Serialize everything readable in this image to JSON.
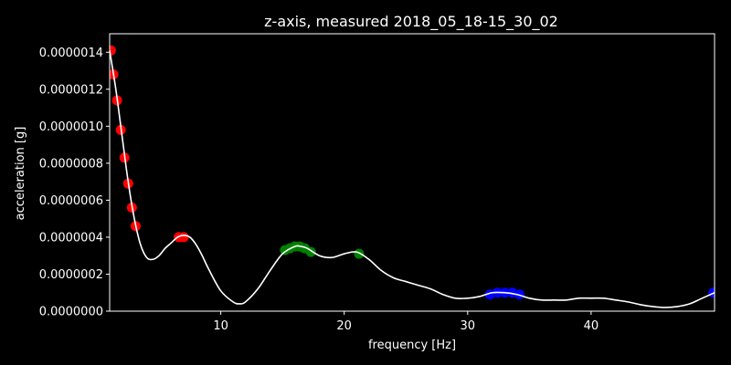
{
  "chart_data": {
    "type": "line",
    "title": "z-axis, measured 2018_05_18-15_30_02",
    "xlabel": "frequency [Hz]",
    "ylabel": "acceleration [g]",
    "xlim": [
      1,
      50
    ],
    "ylim": [
      0,
      1.5e-06
    ],
    "xticks": [
      10,
      20,
      30,
      40
    ],
    "xtick_labels": [
      "10",
      "20",
      "30",
      "40"
    ],
    "yticks": [
      0,
      2e-07,
      4e-07,
      6e-07,
      8e-07,
      1e-06,
      1.2e-06,
      1.4e-06
    ],
    "ytick_labels": [
      "0.0000000",
      "0.0000002",
      "0.0000004",
      "0.0000006",
      "0.0000008",
      "0.0000010",
      "0.0000012",
      "0.0000014"
    ],
    "grid": false,
    "colors": {
      "background": "#000000",
      "line": "#ffffff",
      "red": "#ff0000",
      "green": "#008000",
      "blue": "#0000ff"
    },
    "series": [
      {
        "color": "#ffffff",
        "x": [
          1,
          1.5,
          2,
          2.5,
          3,
          3.5,
          4,
          4.5,
          5,
          5.5,
          6,
          6.5,
          7,
          7.5,
          8,
          8.5,
          9,
          10,
          11,
          11.5,
          12,
          13,
          14,
          15,
          16,
          16.5,
          17,
          18,
          19,
          20,
          21,
          22,
          23,
          24,
          25,
          26,
          27,
          28,
          29,
          30,
          31,
          32,
          33,
          34,
          35,
          36,
          37,
          38,
          39,
          40,
          41,
          42,
          43,
          44,
          45,
          46,
          47,
          48,
          49,
          50
        ],
        "y": [
          1.41e-06,
          1.2e-06,
          9.5e-07,
          7e-07,
          5e-07,
          3.6e-07,
          2.9e-07,
          2.8e-07,
          3e-07,
          3.4e-07,
          3.7e-07,
          4e-07,
          4.1e-07,
          4e-07,
          3.6e-07,
          3e-07,
          2.3e-07,
          1.1e-07,
          5e-08,
          4e-08,
          5e-08,
          1.2e-07,
          2.2e-07,
          3.1e-07,
          3.5e-07,
          3.5e-07,
          3.4e-07,
          3e-07,
          2.9e-07,
          3.1e-07,
          3.2e-07,
          2.8e-07,
          2.2e-07,
          1.8e-07,
          1.6e-07,
          1.4e-07,
          1.2e-07,
          9e-08,
          7e-08,
          7e-08,
          8e-08,
          1e-07,
          1e-07,
          9e-08,
          7e-08,
          6e-08,
          6e-08,
          6e-08,
          7e-08,
          7e-08,
          7e-08,
          6e-08,
          5e-08,
          3.5e-08,
          2.5e-08,
          2e-08,
          2.5e-08,
          4e-08,
          7e-08,
          1e-07
        ]
      }
    ],
    "markers": [
      {
        "color": "#ff0000",
        "x": 1.1,
        "y": 1.41e-06
      },
      {
        "color": "#ff0000",
        "x": 1.3,
        "y": 1.28e-06
      },
      {
        "color": "#ff0000",
        "x": 1.6,
        "y": 1.14e-06
      },
      {
        "color": "#ff0000",
        "x": 1.9,
        "y": 9.8e-07
      },
      {
        "color": "#ff0000",
        "x": 2.2,
        "y": 8.3e-07
      },
      {
        "color": "#ff0000",
        "x": 2.5,
        "y": 6.9e-07
      },
      {
        "color": "#ff0000",
        "x": 2.8,
        "y": 5.6e-07
      },
      {
        "color": "#ff0000",
        "x": 3.1,
        "y": 4.6e-07
      },
      {
        "color": "#ff0000",
        "x": 6.6,
        "y": 4e-07
      },
      {
        "color": "#ff0000",
        "x": 7.0,
        "y": 4e-07
      },
      {
        "color": "#008000",
        "x": 15.2,
        "y": 3.3e-07
      },
      {
        "color": "#008000",
        "x": 15.6,
        "y": 3.4e-07
      },
      {
        "color": "#008000",
        "x": 16.0,
        "y": 3.5e-07
      },
      {
        "color": "#008000",
        "x": 16.4,
        "y": 3.5e-07
      },
      {
        "color": "#008000",
        "x": 16.8,
        "y": 3.4e-07
      },
      {
        "color": "#008000",
        "x": 17.3,
        "y": 3.2e-07
      },
      {
        "color": "#008000",
        "x": 21.2,
        "y": 3.1e-07
      },
      {
        "color": "#0000ff",
        "x": 31.8,
        "y": 9e-08
      },
      {
        "color": "#0000ff",
        "x": 32.4,
        "y": 1e-07
      },
      {
        "color": "#0000ff",
        "x": 33.0,
        "y": 1e-07
      },
      {
        "color": "#0000ff",
        "x": 33.6,
        "y": 1e-07
      },
      {
        "color": "#0000ff",
        "x": 34.2,
        "y": 9e-08
      },
      {
        "color": "#0000ff",
        "x": 49.9,
        "y": 1e-07
      }
    ]
  }
}
